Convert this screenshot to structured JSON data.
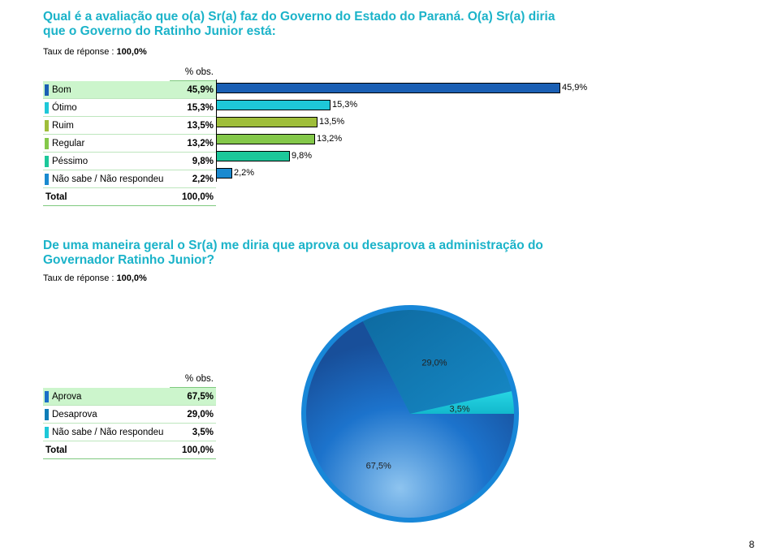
{
  "q1": {
    "title_line1": "Qual é a avaliação que o(a) Sr(a) faz do Governo do Estado do Paraná. O(a) Sr(a) diria",
    "title_line2": "que o Governo do Ratinho Junior está:",
    "taux_label": "Taux de réponse : ",
    "taux_value": "100,0%",
    "col_header": "% obs.",
    "total_label": "Total",
    "total_value": "100,0%"
  },
  "q2": {
    "title_line1": "De uma maneira geral o Sr(a) me diria que aprova ou desaprova a administração do",
    "title_line2": "Governador Ratinho Junior?",
    "taux_label": "Taux de réponse : ",
    "taux_value": "100,0%",
    "col_header": "% obs.",
    "total_label": "Total",
    "total_value": "100,0%"
  },
  "page_number": "8",
  "chart_data": [
    {
      "type": "bar",
      "orientation": "horizontal",
      "categories": [
        "Bom",
        "Ótimo",
        "Ruim",
        "Regular",
        "Péssimo",
        "Não sabe / Não respondeu"
      ],
      "values": [
        45.9,
        15.3,
        13.5,
        13.2,
        9.8,
        2.2
      ],
      "value_labels": [
        "45,9%",
        "15,3%",
        "13,5%",
        "13,2%",
        "9,8%",
        "2,2%"
      ],
      "colors": [
        "#1a5fb4",
        "#1ec8d8",
        "#9fbe3a",
        "#84c84a",
        "#1cc89a",
        "#1a8ad0"
      ],
      "xlim": [
        0,
        45.9
      ]
    },
    {
      "type": "pie",
      "categories": [
        "Aprova",
        "Desaprova",
        "Não sabe / Não respondeu"
      ],
      "values": [
        67.5,
        29.0,
        3.5
      ],
      "value_labels": [
        "67,5%",
        "29,0%",
        "3,5%"
      ],
      "colors": [
        "#1a6fc8",
        "#0f7db8",
        "#1ec8d8"
      ]
    }
  ]
}
